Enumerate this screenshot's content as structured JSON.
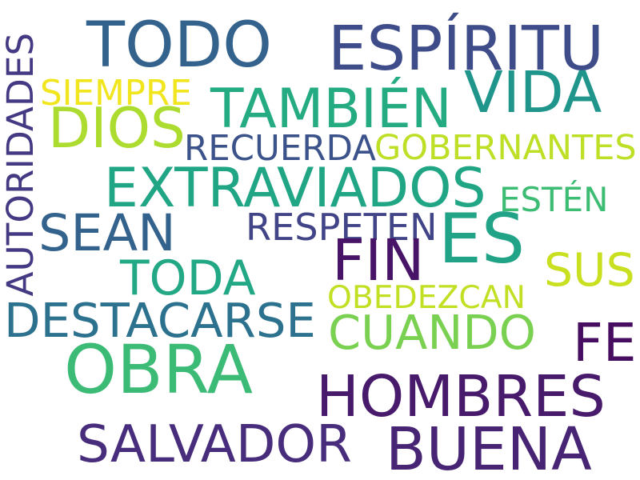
{
  "words": [
    {
      "text": "TODO",
      "color": "#33638d"
    },
    {
      "text": "ESPÍRITU",
      "color": "#3e4c8a"
    },
    {
      "text": "VIDA",
      "color": "#1f958b"
    },
    {
      "text": "AUTORIDADES",
      "color": "#443a83"
    },
    {
      "text": "SIEMPRE",
      "color": "#f1e51d"
    },
    {
      "text": "TAMBIÉN",
      "color": "#25ab82"
    },
    {
      "text": "DIOS",
      "color": "#addc30"
    },
    {
      "text": "RECUERDA",
      "color": "#3b528b"
    },
    {
      "text": "GOBERNANTES",
      "color": "#bddf26"
    },
    {
      "text": "EXTRAVIADOS",
      "color": "#21a685"
    },
    {
      "text": "ESTÉN",
      "color": "#3dbc74"
    },
    {
      "text": "SEAN",
      "color": "#33638d"
    },
    {
      "text": "RESPETEN",
      "color": "#414487"
    },
    {
      "text": "ES",
      "color": "#20a386"
    },
    {
      "text": "FIN",
      "color": "#481467"
    },
    {
      "text": "TODA",
      "color": "#22a884"
    },
    {
      "text": "SUS",
      "color": "#c8e020"
    },
    {
      "text": "OBEDEZCAN",
      "color": "#c2df23"
    },
    {
      "text": "DESTACARSE",
      "color": "#2c728e"
    },
    {
      "text": "CUANDO",
      "color": "#7ad151"
    },
    {
      "text": "FE",
      "color": "#470d60"
    },
    {
      "text": "OBRA",
      "color": "#3bbb75"
    },
    {
      "text": "HOMBRES",
      "color": "#481a6c"
    },
    {
      "text": "SALVADOR",
      "color": "#472d7b"
    },
    {
      "text": "BUENA",
      "color": "#482475"
    }
  ]
}
